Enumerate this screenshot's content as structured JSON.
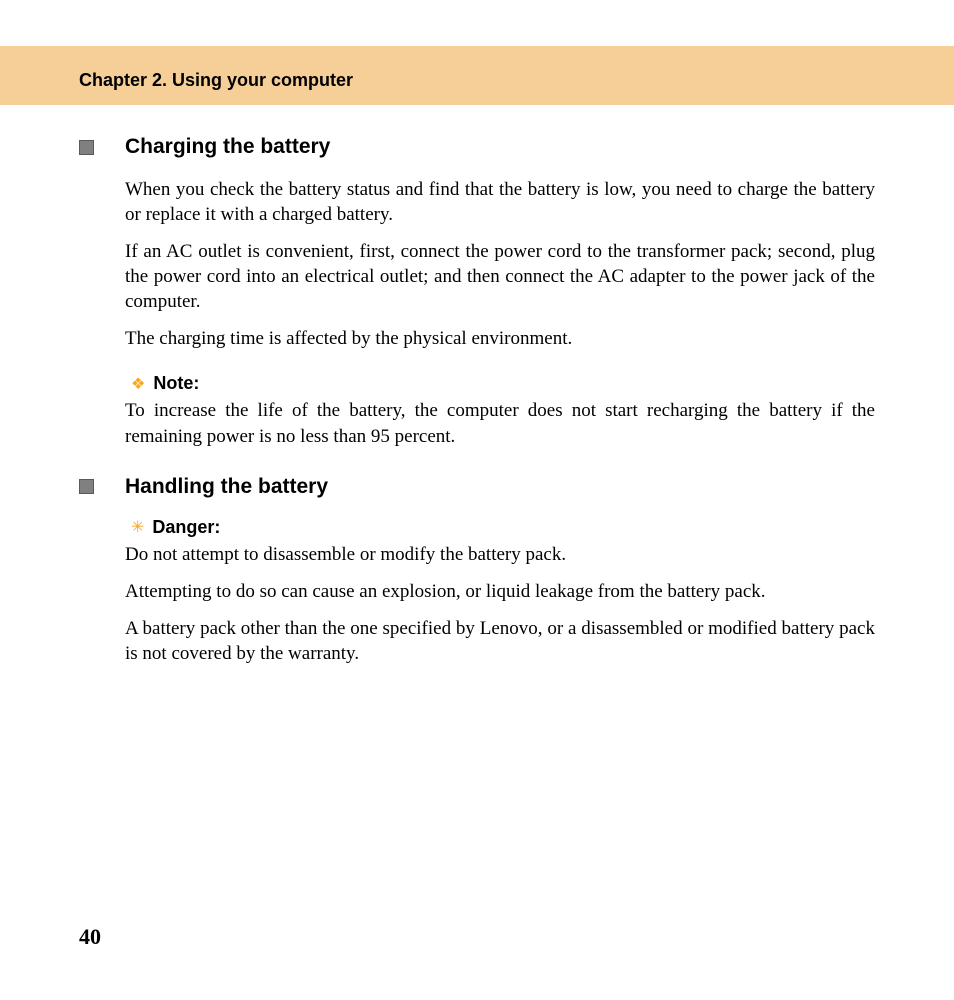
{
  "header": {
    "chapter_title": "Chapter 2. Using your computer"
  },
  "section1": {
    "title": "Charging the battery",
    "para1": "When you check the battery status and find that the battery is low, you need to charge the battery or replace it with a charged battery.",
    "para2": "If an AC outlet is convenient, first, connect the power cord to the transformer pack; second, plug the power cord into an electrical outlet; and then connect the AC adapter to the power jack of the computer.",
    "para3": "The charging time is affected by the physical environment.",
    "note": {
      "label": "Note:",
      "text": "To increase the life of the battery, the computer does not start recharging the battery if the remaining power is no less than 95 percent."
    }
  },
  "section2": {
    "title": "Handling the battery",
    "danger": {
      "label": "Danger:",
      "text1": "Do not attempt to disassemble or modify the battery pack.",
      "text2": "Attempting to do so can cause an explosion, or liquid leakage from the battery pack.",
      "text3": "A battery pack other than the one specified by Lenovo, or a disassembled or modified battery pack is not covered by the warranty."
    }
  },
  "page_number": "40",
  "colors": {
    "header_bg": "#f6ce97",
    "bullet_fill": "#808080",
    "icon_color": "#f5a623"
  }
}
